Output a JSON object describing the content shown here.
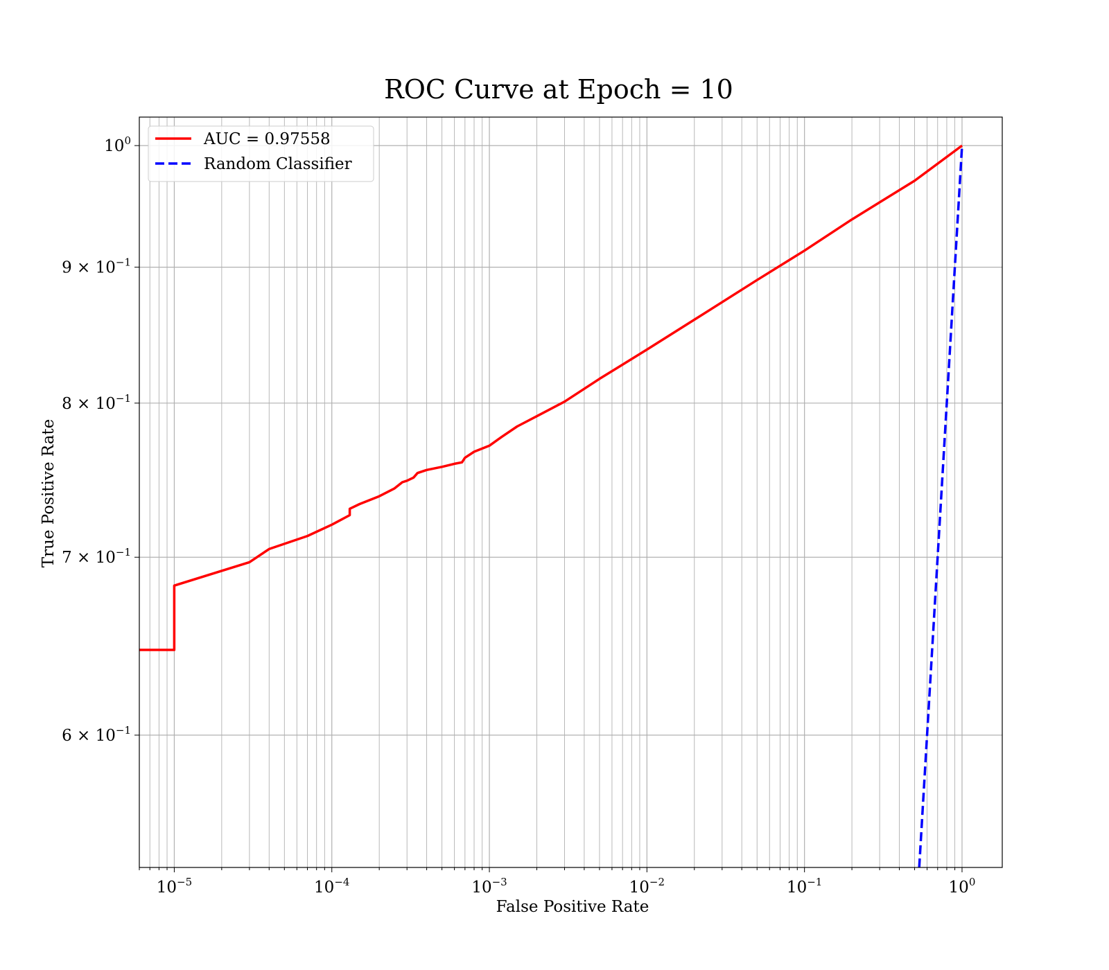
{
  "chart_data": {
    "type": "line",
    "title": "ROC Curve at Epoch = 10",
    "xlabel": "False Positive Rate",
    "ylabel": "True Positive Rate",
    "xscale": "log",
    "yscale": "log",
    "xlim": [
      6e-06,
      1.8
    ],
    "ylim": [
      0.535,
      1.025
    ],
    "grid": "on",
    "legend_placement": "top-left",
    "x_ticks": [
      {
        "value": 1e-05,
        "base": "10",
        "exp": "−5"
      },
      {
        "value": 0.0001,
        "base": "10",
        "exp": "−4"
      },
      {
        "value": 0.001,
        "base": "10",
        "exp": "−3"
      },
      {
        "value": 0.01,
        "base": "10",
        "exp": "−2"
      },
      {
        "value": 0.1,
        "base": "10",
        "exp": "−1"
      },
      {
        "value": 1,
        "base": "10",
        "exp": "0"
      }
    ],
    "y_ticks": [
      {
        "value": 1.0,
        "base": "10",
        "exp": "0"
      },
      {
        "value": 0.9,
        "base": "9 × 10",
        "exp": "−1"
      },
      {
        "value": 0.8,
        "base": "8 × 10",
        "exp": "−1"
      },
      {
        "value": 0.7,
        "base": "7 × 10",
        "exp": "−1"
      },
      {
        "value": 0.6,
        "base": "6 × 10",
        "exp": "−1"
      }
    ],
    "series": [
      {
        "name": "AUC = 0.97558",
        "color": "#ff0000",
        "style": "solid",
        "x": [
          6e-06,
          1e-05,
          1e-05,
          3e-05,
          4e-05,
          7e-05,
          0.0001,
          0.00013,
          0.00013,
          0.00015,
          0.0002,
          0.00025,
          0.00028,
          0.0003,
          0.00033,
          0.00035,
          0.0004,
          0.0005,
          0.0006,
          0.00067,
          0.0007,
          0.0008,
          0.001,
          0.0012,
          0.0015,
          0.002,
          0.003,
          0.005,
          0.01,
          0.02,
          0.05,
          0.1,
          0.2,
          0.5,
          1.0
        ],
        "y": [
          0.646,
          0.646,
          0.683,
          0.697,
          0.705,
          0.713,
          0.72,
          0.726,
          0.73,
          0.733,
          0.738,
          0.743,
          0.747,
          0.748,
          0.75,
          0.753,
          0.755,
          0.757,
          0.759,
          0.76,
          0.763,
          0.767,
          0.771,
          0.777,
          0.784,
          0.791,
          0.801,
          0.817,
          0.838,
          0.86,
          0.89,
          0.913,
          0.938,
          0.97,
          1.0
        ]
      },
      {
        "name": "Random Classifier",
        "color": "#0000ff",
        "style": "dashed",
        "x": [
          0.535,
          1.0
        ],
        "y": [
          0.535,
          1.0
        ]
      }
    ]
  }
}
